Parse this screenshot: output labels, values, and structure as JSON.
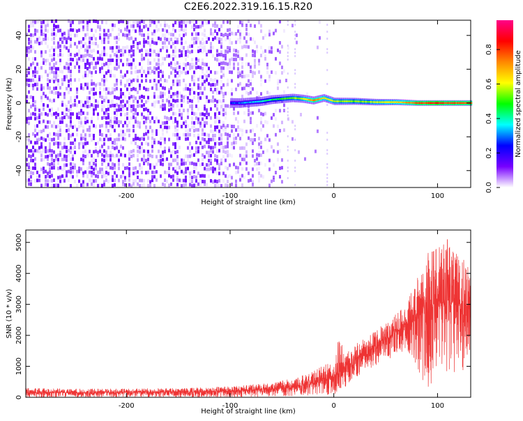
{
  "title": "C2E6.2022.319.16.15.R20",
  "chart_data": [
    {
      "type": "heatmap",
      "xlabel": "Height of straight line (km)",
      "ylabel": "Frequency (Hz)",
      "xlim": [
        -297,
        132
      ],
      "ylim": [
        -50,
        49
      ],
      "xticks": [
        -200,
        -100,
        0,
        100
      ],
      "yticks": [
        -40,
        -20,
        0,
        20,
        40
      ],
      "colorbar": {
        "label": "Normalized spectral amplitude",
        "range": [
          0,
          0.97
        ],
        "ticks": [
          0.0,
          0.2,
          0.4,
          0.6,
          0.8
        ],
        "colormap": [
          "#ffffff",
          "#7700ff",
          "#0000ff",
          "#00ffff",
          "#00ff00",
          "#ffff00",
          "#ff8800",
          "#ff0000",
          "#ff0088"
        ]
      },
      "signal_ridge": [
        {
          "x": -100,
          "freq": 0,
          "amplitude": 0.25
        },
        {
          "x": -90,
          "freq": 0,
          "amplitude": 0.3
        },
        {
          "x": -80,
          "freq": 0.5,
          "amplitude": 0.35
        },
        {
          "x": -70,
          "freq": 1,
          "amplitude": 0.4
        },
        {
          "x": -60,
          "freq": 2,
          "amplitude": 0.45
        },
        {
          "x": -50,
          "freq": 2.5,
          "amplitude": 0.5
        },
        {
          "x": -40,
          "freq": 3,
          "amplitude": 0.55
        },
        {
          "x": -30,
          "freq": 2.5,
          "amplitude": 0.6
        },
        {
          "x": -20,
          "freq": 1.5,
          "amplitude": 0.75
        },
        {
          "x": -10,
          "freq": 3,
          "amplitude": 0.65
        },
        {
          "x": 0,
          "freq": 1,
          "amplitude": 0.6
        },
        {
          "x": 20,
          "freq": 1,
          "amplitude": 0.55
        },
        {
          "x": 40,
          "freq": 0.5,
          "amplitude": 0.6
        },
        {
          "x": 60,
          "freq": 0.5,
          "amplitude": 0.65
        },
        {
          "x": 80,
          "freq": 0,
          "amplitude": 0.8
        },
        {
          "x": 100,
          "freq": 0,
          "amplitude": 0.85
        },
        {
          "x": 120,
          "freq": 0,
          "amplitude": 0.8
        }
      ]
    },
    {
      "type": "line",
      "xlabel": "Height of straight line (km)",
      "ylabel": "SNR (10 * v/v)",
      "xlim": [
        -297,
        132
      ],
      "ylim": [
        0,
        5400
      ],
      "xticks": [
        -200,
        -100,
        0,
        100
      ],
      "yticks": [
        0,
        1000,
        2000,
        3000,
        4000,
        5000
      ],
      "color": "#ee3333",
      "envelope": [
        {
          "x": -297,
          "low": 0,
          "mean": 150,
          "high": 300
        },
        {
          "x": -250,
          "low": 0,
          "mean": 150,
          "high": 280
        },
        {
          "x": -200,
          "low": 0,
          "mean": 160,
          "high": 280
        },
        {
          "x": -150,
          "low": 0,
          "mean": 170,
          "high": 300
        },
        {
          "x": -100,
          "low": 0,
          "mean": 200,
          "high": 350
        },
        {
          "x": -60,
          "low": 20,
          "mean": 270,
          "high": 480
        },
        {
          "x": -40,
          "low": 40,
          "mean": 320,
          "high": 600
        },
        {
          "x": -20,
          "low": 60,
          "mean": 450,
          "high": 850
        },
        {
          "x": 0,
          "low": 80,
          "mean": 650,
          "high": 1200
        },
        {
          "x": 5,
          "low": 50,
          "mean": 800,
          "high": 2100
        },
        {
          "x": 10,
          "low": 300,
          "mean": 950,
          "high": 1400
        },
        {
          "x": 20,
          "low": 600,
          "mean": 1200,
          "high": 1700
        },
        {
          "x": 40,
          "low": 1000,
          "mean": 1650,
          "high": 2150
        },
        {
          "x": 60,
          "low": 1350,
          "mean": 2100,
          "high": 2700
        },
        {
          "x": 70,
          "low": 1500,
          "mean": 2350,
          "high": 3000
        },
        {
          "x": 80,
          "low": 1000,
          "mean": 2700,
          "high": 3900
        },
        {
          "x": 90,
          "low": 200,
          "mean": 3000,
          "high": 4700
        },
        {
          "x": 100,
          "low": 400,
          "mean": 3000,
          "high": 5000
        },
        {
          "x": 110,
          "low": 600,
          "mean": 3100,
          "high": 5300
        },
        {
          "x": 120,
          "low": 500,
          "mean": 3000,
          "high": 4700
        },
        {
          "x": 132,
          "low": 900,
          "mean": 3000,
          "high": 4100
        }
      ]
    }
  ]
}
